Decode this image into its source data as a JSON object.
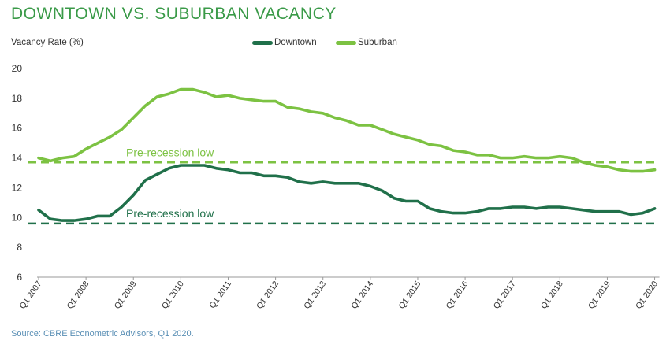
{
  "title": "DOWNTOWN VS. SUBURBAN VACANCY",
  "source": "Source: CBRE Econometric Advisors, Q1 2020.",
  "colors": {
    "downtown": "#20704a",
    "suburban": "#7cc242",
    "title": "#3a9a48"
  },
  "chart_data": {
    "type": "line",
    "ylabel": "Vacancy Rate (%)",
    "xlabel": "",
    "ylim": [
      6,
      20
    ],
    "yticks": [
      6,
      8,
      10,
      12,
      14,
      16,
      18,
      20
    ],
    "grid": false,
    "legend": "top-center",
    "xtick_labels": [
      "Q1 2007",
      "Q1 2008",
      "Q1 2009",
      "Q1 2010",
      "Q1 2011",
      "Q1 2012",
      "Q1 2013",
      "Q1 2014",
      "Q1 2015",
      "Q1 2016",
      "Q1 2017",
      "Q1 2018",
      "Q1 2019",
      "Q1 2020"
    ],
    "quarters_per_tick": 4,
    "series": [
      {
        "name": "Downtown",
        "color": "#20704a",
        "values": [
          10.5,
          9.9,
          9.8,
          9.8,
          9.9,
          10.1,
          10.1,
          10.7,
          11.5,
          12.5,
          12.9,
          13.3,
          13.5,
          13.5,
          13.5,
          13.3,
          13.2,
          13.0,
          13.0,
          12.8,
          12.8,
          12.7,
          12.4,
          12.3,
          12.4,
          12.3,
          12.3,
          12.3,
          12.1,
          11.8,
          11.3,
          11.1,
          11.1,
          10.6,
          10.4,
          10.3,
          10.3,
          10.4,
          10.6,
          10.6,
          10.7,
          10.7,
          10.6,
          10.7,
          10.7,
          10.6,
          10.5,
          10.4,
          10.4,
          10.4,
          10.2,
          10.3,
          10.6
        ]
      },
      {
        "name": "Suburban",
        "color": "#7cc242",
        "values": [
          14.0,
          13.8,
          14.0,
          14.1,
          14.6,
          15.0,
          15.4,
          15.9,
          16.7,
          17.5,
          18.1,
          18.3,
          18.6,
          18.6,
          18.4,
          18.1,
          18.2,
          18.0,
          17.9,
          17.8,
          17.8,
          17.4,
          17.3,
          17.1,
          17.0,
          16.7,
          16.5,
          16.2,
          16.2,
          15.9,
          15.6,
          15.4,
          15.2,
          14.9,
          14.8,
          14.5,
          14.4,
          14.2,
          14.2,
          14.0,
          14.0,
          14.1,
          14.0,
          14.0,
          14.1,
          14.0,
          13.7,
          13.5,
          13.4,
          13.2,
          13.1,
          13.1,
          13.2
        ]
      }
    ],
    "reference_lines": [
      {
        "label": "Pre-recession low",
        "value": 13.7,
        "color": "#7cc242"
      },
      {
        "label": "Pre-recession low",
        "value": 9.6,
        "color": "#20704a"
      }
    ]
  }
}
